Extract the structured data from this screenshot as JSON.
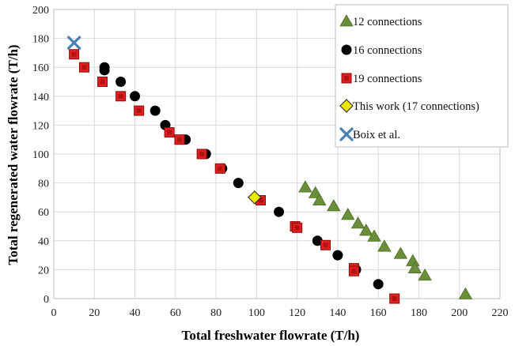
{
  "chart_data": {
    "type": "scatter",
    "xlabel": "Total freshwater flowrate (T/h)",
    "ylabel": "Total regenerated water flowrate (T/h)",
    "xlim": [
      0,
      220
    ],
    "ylim": [
      0,
      200
    ],
    "xticks": [
      "0",
      "20",
      "40",
      "60",
      "80",
      "100",
      "120",
      "140",
      "160",
      "180",
      "200",
      "220"
    ],
    "yticks": [
      "0",
      "20",
      "40",
      "60",
      "80",
      "100",
      "120",
      "140",
      "160",
      "180",
      "200"
    ],
    "grid": true,
    "legend_position": "top-right",
    "series": [
      {
        "name": "12 connections",
        "marker": "triangle",
        "color": "#6B8E3A",
        "points": [
          [
            124,
            77
          ],
          [
            129,
            73
          ],
          [
            131,
            68
          ],
          [
            138,
            64
          ],
          [
            145,
            58
          ],
          [
            150,
            52
          ],
          [
            154,
            47
          ],
          [
            158,
            43
          ],
          [
            163,
            36
          ],
          [
            171,
            31
          ],
          [
            177,
            26
          ],
          [
            178,
            21
          ],
          [
            183,
            16
          ],
          [
            203,
            3
          ]
        ]
      },
      {
        "name": "16 connections",
        "marker": "circle",
        "color": "#000000",
        "points": [
          [
            25,
            160
          ],
          [
            25,
            158
          ],
          [
            33,
            150
          ],
          [
            40,
            140
          ],
          [
            50,
            130
          ],
          [
            55,
            120
          ],
          [
            65,
            110
          ],
          [
            75,
            100
          ],
          [
            83,
            90
          ],
          [
            91,
            80
          ],
          [
            111,
            60
          ],
          [
            130,
            40
          ],
          [
            140,
            30
          ],
          [
            149,
            20
          ],
          [
            160,
            10
          ]
        ]
      },
      {
        "name": "19 connections",
        "marker": "square",
        "color": "#E02020",
        "points": [
          [
            10,
            169
          ],
          [
            15,
            160
          ],
          [
            24,
            150
          ],
          [
            33,
            140
          ],
          [
            42,
            130
          ],
          [
            57,
            115
          ],
          [
            62,
            110
          ],
          [
            73,
            100
          ],
          [
            82,
            90
          ],
          [
            102,
            68
          ],
          [
            119,
            50
          ],
          [
            120,
            49
          ],
          [
            134,
            37
          ],
          [
            148,
            21
          ],
          [
            148,
            19
          ],
          [
            168,
            0
          ]
        ]
      },
      {
        "name": "This work (17 connections)",
        "marker": "diamond",
        "color": "#E8E800",
        "points": [
          [
            99,
            70
          ]
        ]
      },
      {
        "name": "Boix et al.",
        "marker": "x",
        "color": "#4A7FB5",
        "points": [
          [
            10,
            177
          ]
        ]
      }
    ]
  }
}
